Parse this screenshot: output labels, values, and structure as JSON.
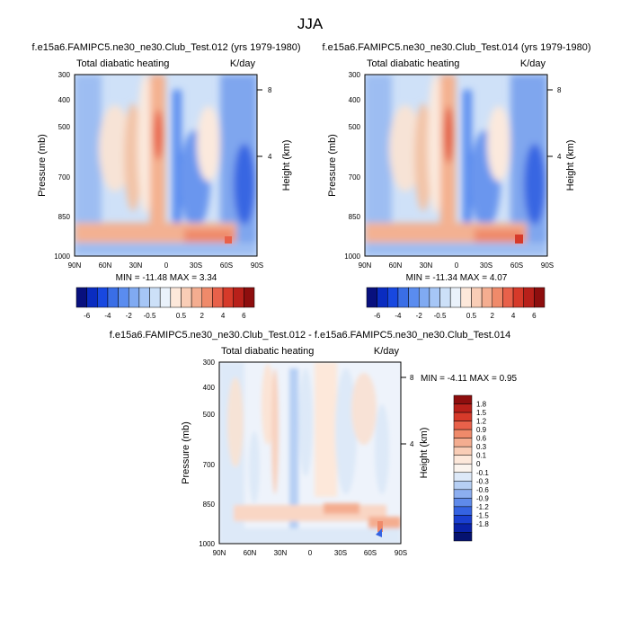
{
  "figure": {
    "title": "JJA"
  },
  "chart_data": [
    {
      "type": "heatmap",
      "title": "f.e15a6.FAMIPC5.ne30_ne30.Club_Test.012 (yrs 1979-1980)",
      "left_label": "Total diabatic heating",
      "units": "K/day",
      "ylabel": "Pressure (mb)",
      "ylabel_right": "Height (km)",
      "x_ticks": [
        "90N",
        "60N",
        "30N",
        "0",
        "30S",
        "60S",
        "90S"
      ],
      "y_ticks": [
        "300",
        "400",
        "500",
        "700",
        "850",
        "1000"
      ],
      "height_ticks": [
        "8",
        "4"
      ],
      "stats": "MIN = -11.48   MAX =  3.34"
    },
    {
      "type": "heatmap",
      "title": "f.e15a6.FAMIPC5.ne30_ne30.Club_Test.014 (yrs 1979-1980)",
      "left_label": "Total diabatic heating",
      "units": "K/day",
      "ylabel": "Pressure (mb)",
      "ylabel_right": "Height (km)",
      "x_ticks": [
        "90N",
        "60N",
        "30N",
        "0",
        "30S",
        "60S",
        "90S"
      ],
      "y_ticks": [
        "300",
        "400",
        "500",
        "700",
        "850",
        "1000"
      ],
      "height_ticks": [
        "8",
        "4"
      ],
      "stats": "MIN = -11.34   MAX =  4.07"
    },
    {
      "type": "heatmap",
      "title": "f.e15a6.FAMIPC5.ne30_ne30.Club_Test.012 - f.e15a6.FAMIPC5.ne30_ne30.Club_Test.014",
      "left_label": "Total diabatic heating",
      "units": "K/day",
      "ylabel": "Pressure (mb)",
      "ylabel_right": "Height (km)",
      "x_ticks": [
        "90N",
        "60N",
        "30N",
        "0",
        "30S",
        "60S",
        "90S"
      ],
      "y_ticks": [
        "300",
        "400",
        "500",
        "700",
        "850",
        "1000"
      ],
      "height_ticks": [
        "8",
        "4"
      ],
      "stats": "MIN = -4.11   MAX =  0.95"
    }
  ],
  "colorbar_top": {
    "labels": [
      "-6",
      "-4",
      "-2",
      "-0.5",
      "0.5",
      "2",
      "4",
      "6"
    ],
    "colors": [
      "#08107e",
      "#0a2cc0",
      "#1848e0",
      "#3a6ee6",
      "#5a8cef",
      "#80aaf2",
      "#a6c6f6",
      "#cce0f8",
      "#eaf2fb",
      "#fde8da",
      "#f9cdb6",
      "#f4ad90",
      "#ef8a6a",
      "#e8614a",
      "#d63a2a",
      "#b8201a",
      "#8e0e0e"
    ]
  },
  "colorbar_diff": {
    "labels": [
      "1.8",
      "1.5",
      "1.2",
      "0.9",
      "0.6",
      "0.3",
      "0.1",
      "0",
      "-0.1",
      "-0.3",
      "-0.6",
      "-0.9",
      "-1.2",
      "-1.5",
      "-1.8"
    ],
    "colors": [
      "#8e0e0e",
      "#b8201a",
      "#d63a2a",
      "#e8614a",
      "#ef8a6a",
      "#f4ad90",
      "#f9cdb6",
      "#fde8da",
      "#fbf4ee",
      "#dde9f8",
      "#b6cff4",
      "#8caef0",
      "#5f8aea",
      "#3563e2",
      "#1a3fd0",
      "#0a22a8",
      "#051270"
    ]
  }
}
